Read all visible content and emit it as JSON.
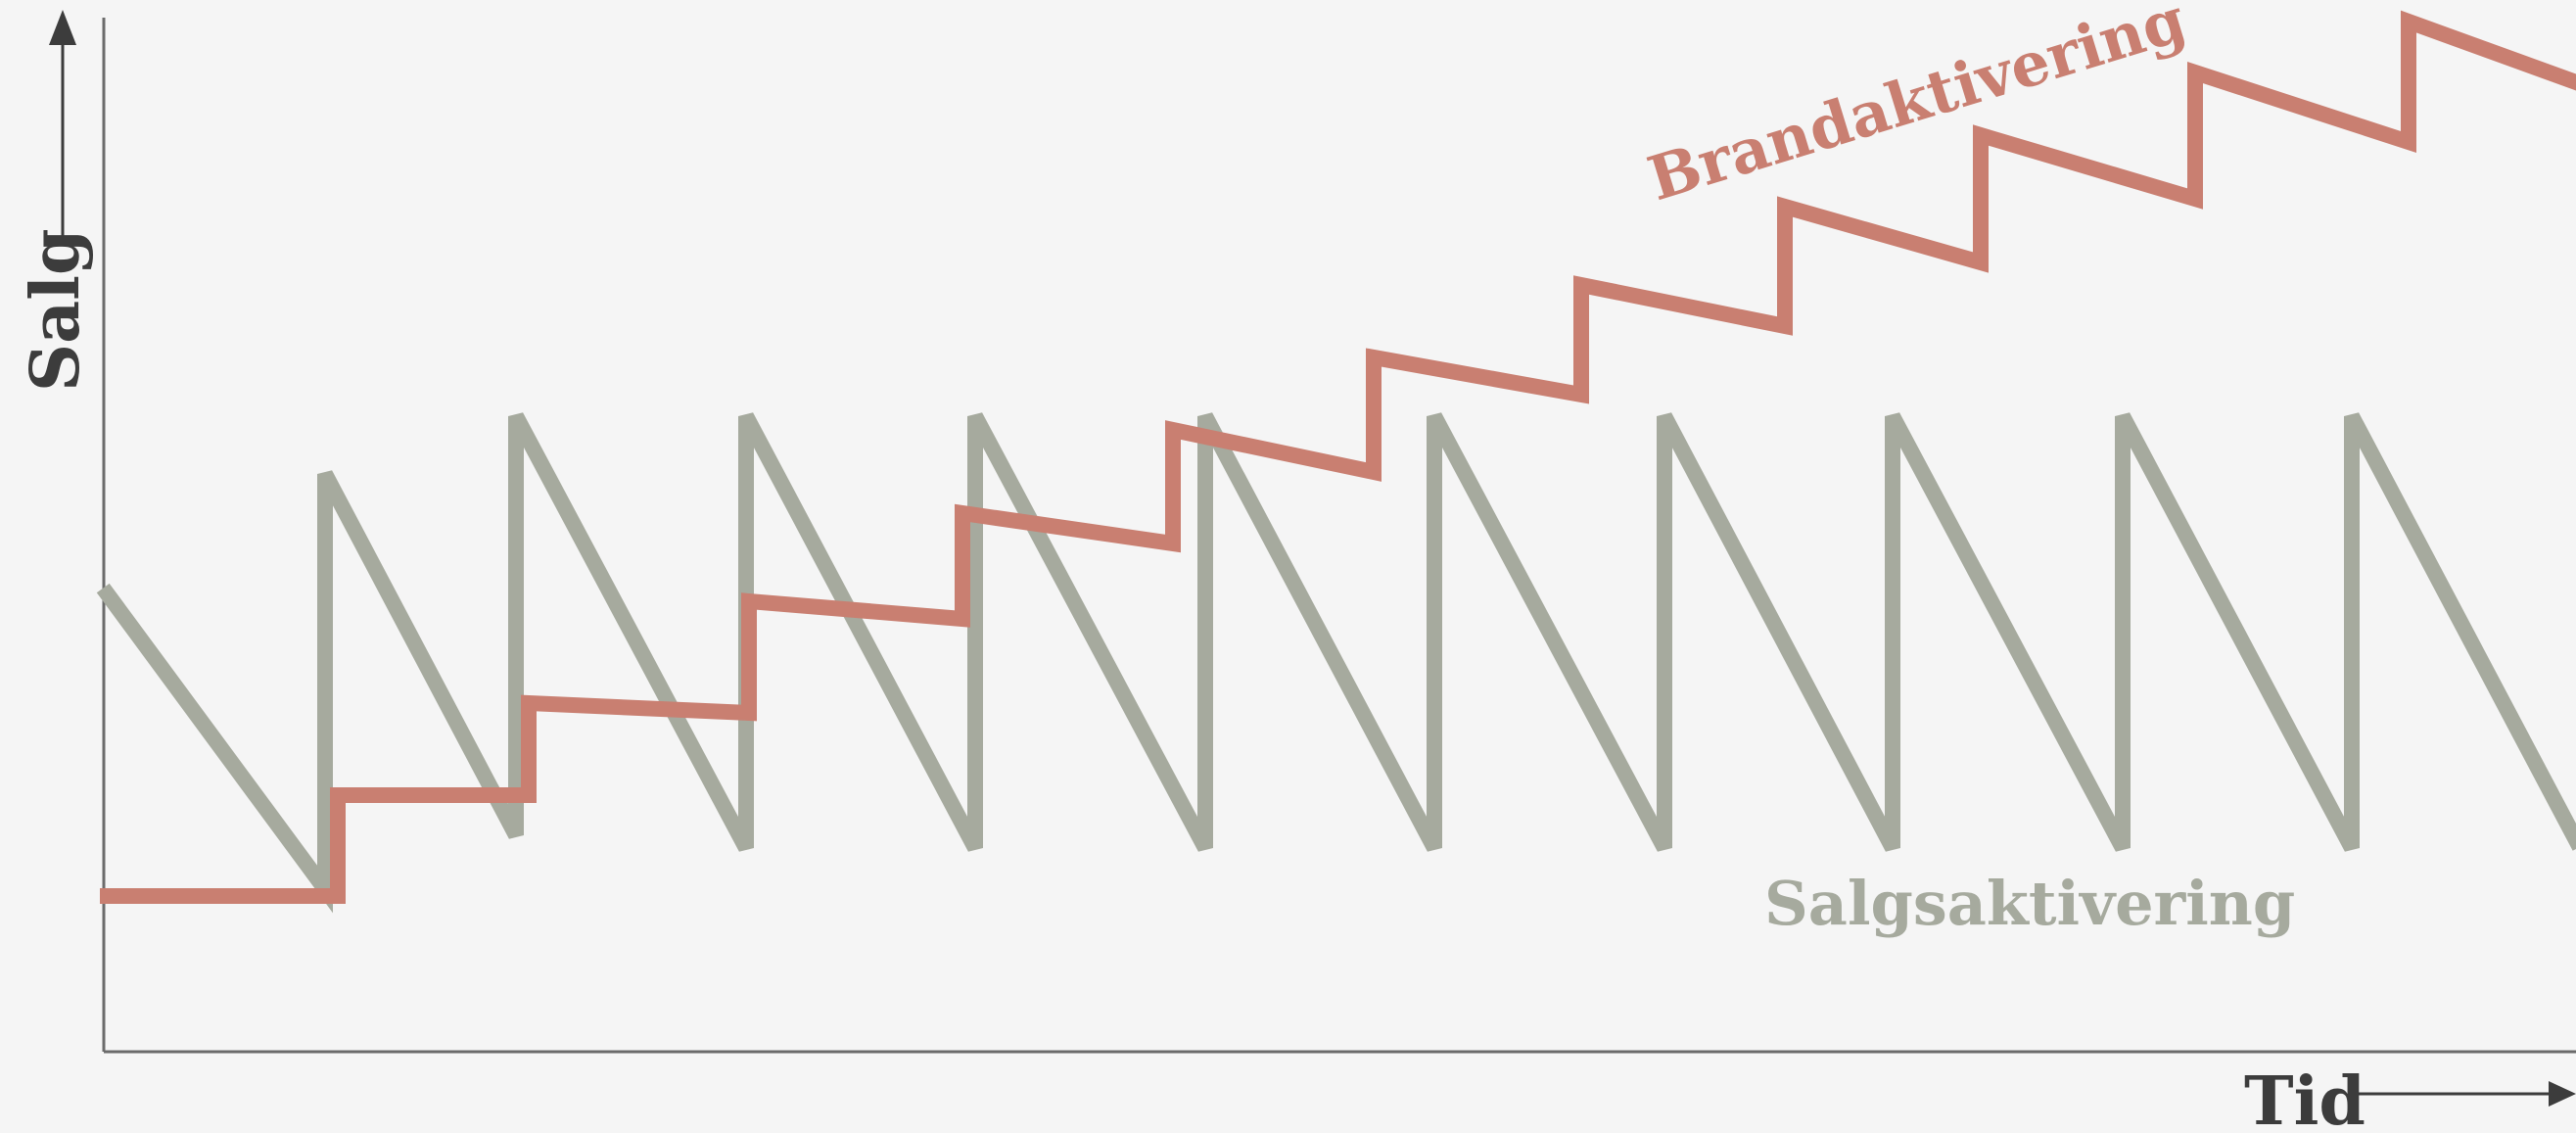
{
  "axes": {
    "x_label": "Tid",
    "y_label": "Salg"
  },
  "series": {
    "brand": {
      "label": "Brandaktivering",
      "color": "#c97f71"
    },
    "sales": {
      "label": "Salgsaktivering",
      "color": "#a6aa9e"
    }
  },
  "background": "#f5f5f5"
}
